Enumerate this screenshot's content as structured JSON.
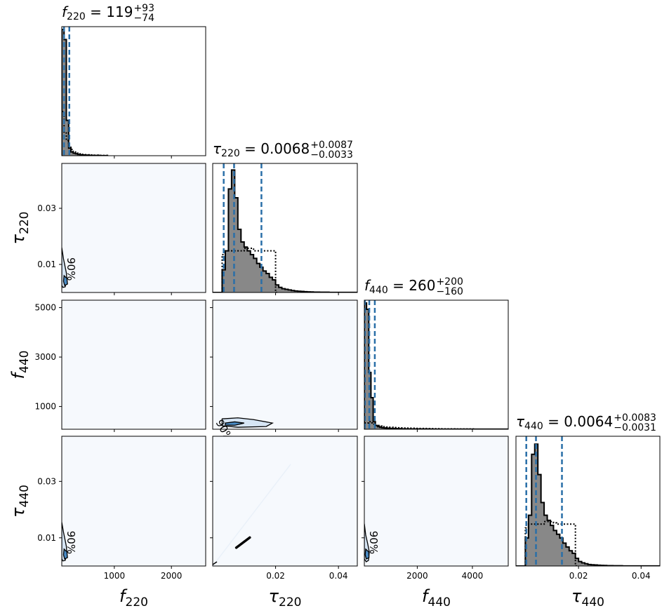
{
  "figure": {
    "axis_labels": {
      "f220": {
        "base": "f",
        "sub": "220"
      },
      "tau220": {
        "base": "τ",
        "sub": "220"
      },
      "f440": {
        "base": "f",
        "sub": "440"
      },
      "tau440": {
        "base": "τ",
        "sub": "440"
      }
    },
    "titles": {
      "f220": {
        "base": "f",
        "sub": "220",
        "value": "119",
        "plus": "+93",
        "minus": "−74"
      },
      "tau220": {
        "base": "τ",
        "sub": "220",
        "value": "0.0068",
        "plus": "+0.0087",
        "minus": "−0.0033"
      },
      "f440": {
        "base": "f",
        "sub": "440",
        "value": "260",
        "plus": "+200",
        "minus": "−160"
      },
      "tau440": {
        "base": "τ",
        "sub": "440",
        "value": "0.0064",
        "plus": "+0.0083",
        "minus": "−0.0031"
      }
    },
    "contour_label": "90%"
  },
  "chart_data": {
    "type": "corner",
    "parameters": [
      "f220",
      "tau220",
      "f440",
      "tau440"
    ],
    "ranges": {
      "f220": [
        80,
        2600
      ],
      "tau220": [
        0.0,
        0.046
      ],
      "f440": [
        80,
        5300
      ],
      "tau440": [
        0.0,
        0.046
      ]
    },
    "ticks": {
      "f220": [
        1000,
        2000
      ],
      "tau220": [
        0.01,
        0.03
      ],
      "tau220_bottom": [
        0.02,
        0.04
      ],
      "f440": [
        1000,
        3000,
        5000
      ],
      "f440_bottom": [
        2000,
        4000
      ],
      "tau440": [
        0.01,
        0.03
      ],
      "tau440_bottom": [
        0.02,
        0.04
      ]
    },
    "tick_labels": {
      "f220": [
        "1000",
        "2000"
      ],
      "tau220": [
        "0.01",
        "0.03"
      ],
      "tau220_bottom": [
        "0.02",
        "0.04"
      ],
      "f440": [
        "1000",
        "3000",
        "5000"
      ],
      "f440_bottom": [
        "2000",
        "4000"
      ],
      "tau440": [
        "0.01",
        "0.03"
      ],
      "tau440_bottom": [
        "0.02",
        "0.04"
      ]
    },
    "quantiles": {
      "f220": [
        45,
        119,
        212
      ],
      "tau220": [
        0.0035,
        0.0068,
        0.0155
      ],
      "f440": [
        100,
        260,
        460
      ],
      "tau440": [
        0.0033,
        0.0064,
        0.0147
      ]
    },
    "posterior_hist": {
      "f220": {
        "start": 80,
        "width": 40,
        "values": [
          1.0,
          0.92,
          0.28,
          0.06,
          0.03,
          0.02,
          0.015,
          0.01,
          0.008,
          0.006,
          0.005,
          0.004,
          0.003,
          0.003,
          0.002,
          0.002,
          0.002,
          0.001,
          0.001,
          0.001
        ]
      },
      "tau220": {
        "start": 0.0,
        "width": 0.001,
        "values": [
          0.0,
          0.0,
          0.0,
          0.18,
          0.33,
          0.82,
          0.97,
          0.75,
          0.5,
          0.4,
          0.36,
          0.33,
          0.3,
          0.27,
          0.23,
          0.2,
          0.17,
          0.15,
          0.12,
          0.1,
          0.06,
          0.04,
          0.03,
          0.025,
          0.02,
          0.015,
          0.012,
          0.01,
          0.008,
          0.006,
          0.005,
          0.004,
          0.003,
          0.003,
          0.002,
          0.002,
          0.002,
          0.001,
          0.001,
          0.001,
          0.001,
          0.001,
          0.001,
          0.001,
          0.001,
          0.001
        ]
      },
      "f440": {
        "start": 80,
        "width": 80,
        "values": [
          1.0,
          0.95,
          0.45,
          0.25,
          0.06,
          0.03,
          0.02,
          0.015,
          0.012,
          0.01,
          0.008,
          0.007,
          0.006,
          0.005,
          0.005,
          0.004,
          0.004,
          0.003,
          0.003,
          0.003,
          0.002,
          0.002,
          0.002,
          0.002,
          0.002,
          0.002,
          0.002,
          0.002,
          0.002,
          0.002,
          0.001,
          0.001,
          0.001,
          0.001,
          0.001,
          0.001,
          0.001,
          0.001,
          0.001,
          0.001,
          0.001,
          0.001,
          0.001,
          0.001,
          0.001,
          0.001,
          0.001,
          0.001,
          0.001,
          0.001,
          0.001,
          0.001,
          0.001,
          0.001,
          0.001,
          0.001,
          0.001,
          0.001,
          0.001,
          0.001,
          0.001,
          0.001,
          0.001,
          0.001,
          0.001
        ]
      },
      "tau440": {
        "start": 0.0,
        "width": 0.001,
        "values": [
          0.0,
          0.0,
          0.0,
          0.22,
          0.4,
          0.88,
          0.96,
          0.72,
          0.5,
          0.4,
          0.36,
          0.32,
          0.28,
          0.25,
          0.22,
          0.18,
          0.15,
          0.12,
          0.1,
          0.06,
          0.035,
          0.025,
          0.018,
          0.012,
          0.01,
          0.008,
          0.006,
          0.005,
          0.004,
          0.003,
          0.003,
          0.002,
          0.002,
          0.002,
          0.001,
          0.001,
          0.001,
          0.001,
          0.001,
          0.001,
          0.001,
          0.001,
          0.001,
          0.001,
          0.001,
          0.001
        ]
      }
    },
    "prior_hist": {
      "f220": {
        "start": 80,
        "width": 40,
        "values": [
          0.35,
          0.18,
          0.12,
          0.08,
          0.05,
          0.03,
          0.02,
          0.015,
          0.012,
          0.01,
          0.008,
          0.007,
          0.006,
          0.005,
          0.004,
          0.004,
          0.003,
          0.003,
          0.002,
          0.002
        ]
      },
      "tau220": {
        "start": 0.0,
        "width": 0.001,
        "values": [
          0.0,
          0.0,
          0.0,
          0.3,
          0.33,
          0.33,
          0.33,
          0.33,
          0.33,
          0.33,
          0.35,
          0.35,
          0.35,
          0.33,
          0.33,
          0.33,
          0.33,
          0.33,
          0.33,
          0.33,
          0.0
        ]
      },
      "f440": {
        "start": 80,
        "width": 80,
        "values": [
          0.05,
          0.05,
          0.06,
          0.05,
          0.04,
          0.03,
          0.03,
          0.025,
          0.02,
          0.02,
          0.018,
          0.016,
          0.015,
          0.014,
          0.013,
          0.012,
          0.011,
          0.01,
          0.01,
          0.009,
          0.009,
          0.008,
          0.008,
          0.007,
          0.007,
          0.006,
          0.006,
          0.006,
          0.005,
          0.005,
          0.005,
          0.004,
          0.004,
          0.004,
          0.004,
          0.003,
          0.003,
          0.003,
          0.003,
          0.003,
          0.003,
          0.002,
          0.002,
          0.002,
          0.002,
          0.002,
          0.002,
          0.002,
          0.002,
          0.002
        ]
      },
      "tau440": {
        "start": 0.0,
        "width": 0.001,
        "values": [
          0.0,
          0.0,
          0.0,
          0.3,
          0.33,
          0.33,
          0.33,
          0.33,
          0.33,
          0.35,
          0.35,
          0.35,
          0.34,
          0.33,
          0.33,
          0.33,
          0.33,
          0.33,
          0.33,
          0.0
        ]
      }
    },
    "contours_2d": {
      "tau220_f220": {
        "x_param": "f220",
        "y_param": "tau220",
        "level": "90%",
        "outer": [
          [
            80,
            0.016
          ],
          [
            110,
            0.012
          ],
          [
            140,
            0.009
          ],
          [
            160,
            0.007
          ],
          [
            170,
            0.0045
          ],
          [
            140,
            0.002
          ],
          [
            100,
            0.0018
          ],
          [
            80,
            0.0025
          ]
        ],
        "inner": [
          [
            120,
            0.006
          ],
          [
            170,
            0.005
          ],
          [
            180,
            0.003
          ],
          [
            130,
            0.0025
          ],
          [
            110,
            0.004
          ]
        ]
      },
      "f440_tau220": {
        "x_param": "tau220",
        "y_param": "f440",
        "level": "90%",
        "outer": [
          [
            0.003,
            500
          ],
          [
            0.008,
            540
          ],
          [
            0.013,
            470
          ],
          [
            0.019,
            330
          ],
          [
            0.017,
            190
          ],
          [
            0.008,
            160
          ],
          [
            0.003,
            220
          ]
        ],
        "inner": [
          [
            0.004,
            330
          ],
          [
            0.007,
            380
          ],
          [
            0.01,
            330
          ],
          [
            0.007,
            240
          ],
          [
            0.004,
            250
          ]
        ]
      },
      "tau440_f220": {
        "x_param": "f220",
        "y_param": "tau440",
        "level": "90%",
        "outer": [
          [
            80,
            0.0155
          ],
          [
            110,
            0.012
          ],
          [
            140,
            0.009
          ],
          [
            160,
            0.007
          ],
          [
            170,
            0.0045
          ],
          [
            140,
            0.002
          ],
          [
            100,
            0.0018
          ],
          [
            80,
            0.0025
          ]
        ],
        "inner": [
          [
            120,
            0.006
          ],
          [
            170,
            0.005
          ],
          [
            180,
            0.003
          ],
          [
            130,
            0.0025
          ],
          [
            110,
            0.004
          ]
        ]
      },
      "tau440_tau220": {
        "x_param": "tau220",
        "y_param": "tau440",
        "level": "90%",
        "line": [
          [
            0.0075,
            0.0065
          ],
          [
            0.0118,
            0.0101
          ]
        ]
      },
      "tau440_f440": {
        "x_param": "f440",
        "y_param": "tau440",
        "level": "90%",
        "outer": [
          [
            80,
            0.015
          ],
          [
            130,
            0.011
          ],
          [
            200,
            0.008
          ],
          [
            260,
            0.005
          ],
          [
            230,
            0.002
          ],
          [
            150,
            0.0015
          ],
          [
            80,
            0.0025
          ]
        ],
        "inner": [
          [
            130,
            0.006
          ],
          [
            240,
            0.005
          ],
          [
            250,
            0.003
          ],
          [
            150,
            0.0025
          ],
          [
            110,
            0.004
          ]
        ]
      }
    },
    "colors": {
      "posterior_fill": "#888888",
      "posterior_line": "#000000",
      "prior_line": "#000000",
      "quantile_line": "#2a6fa8",
      "density_bg": "#f6f9fd",
      "contour_fill_outer": "#d6e5f4",
      "contour_fill_inner": "#4a8bc4",
      "contour_line": "#000000"
    }
  }
}
